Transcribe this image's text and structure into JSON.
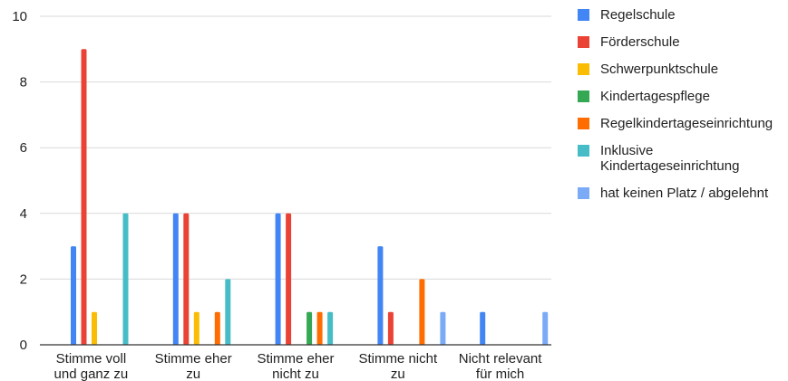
{
  "chart_data": {
    "type": "bar",
    "title": "",
    "xlabel": "",
    "ylabel": "",
    "ylim": [
      0,
      10
    ],
    "yticks": [
      0,
      2,
      4,
      6,
      8,
      10
    ],
    "grid": true,
    "legend_position": "right",
    "categories": [
      [
        "Stimme voll",
        "und ganz zu"
      ],
      [
        "Stimme eher",
        "zu"
      ],
      [
        "Stimme eher",
        "nicht zu"
      ],
      [
        "Stimme nicht",
        "zu"
      ],
      [
        "Nicht relevant",
        "für mich"
      ]
    ],
    "series": [
      {
        "name": "Regelschule",
        "color": "#4285F4",
        "values": [
          3,
          4,
          4,
          3,
          1
        ]
      },
      {
        "name": "Förderschule",
        "color": "#EA4335",
        "values": [
          9,
          4,
          4,
          1,
          0
        ]
      },
      {
        "name": "Schwerpunktschule",
        "color": "#FBBC04",
        "values": [
          1,
          1,
          0,
          0,
          0
        ]
      },
      {
        "name": "Kindertagespflege",
        "color": "#34A853",
        "values": [
          0,
          0,
          1,
          0,
          0
        ]
      },
      {
        "name": "Regelkindertageseinrichtung",
        "color": "#FF6D01",
        "values": [
          0,
          1,
          1,
          2,
          0
        ]
      },
      {
        "name": "Inklusive Kindertageseinrichtung",
        "label_lines": [
          "Inklusive",
          "Kindertageseinrichtung"
        ],
        "color": "#46BDC6",
        "values": [
          4,
          2,
          1,
          0,
          0
        ]
      },
      {
        "name": "hat keinen Platz / abgelehnt",
        "color": "#7BAAF7",
        "values": [
          0,
          0,
          0,
          1,
          1
        ]
      }
    ]
  }
}
